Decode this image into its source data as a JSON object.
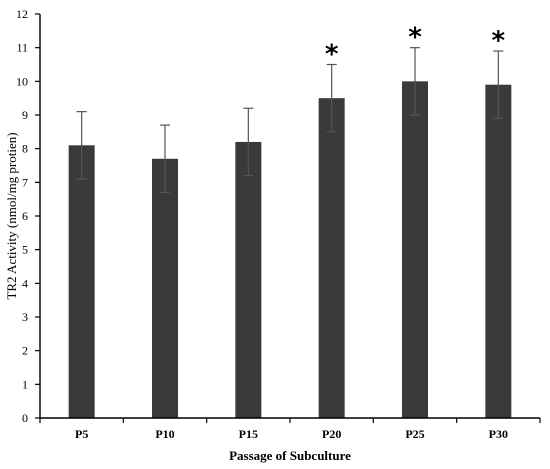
{
  "chart_data": {
    "type": "bar",
    "categories": [
      "P5",
      "P10",
      "P15",
      "P20",
      "P25",
      "P30"
    ],
    "series": [
      {
        "values": [
          8.1,
          7.7,
          8.2,
          9.5,
          10.0,
          9.9
        ],
        "errors": [
          1.0,
          1.0,
          1.0,
          1.0,
          1.0,
          1.0
        ],
        "annotations": [
          "",
          "",
          "",
          "*",
          "*",
          "*"
        ]
      }
    ],
    "xlabel": "Passage of Subculture",
    "ylabel": "TR2 Activity (nmol/mg protien)",
    "ylim": [
      0,
      12
    ],
    "yticks": [
      "0",
      "1",
      "2",
      "3",
      "4",
      "5",
      "6",
      "7",
      "8",
      "9",
      "10",
      "11",
      "12"
    ],
    "grid": false,
    "legend": "none",
    "colors": {
      "bar": "#3a3a3a",
      "axis": "#000000",
      "error_bar": "#555555"
    }
  }
}
